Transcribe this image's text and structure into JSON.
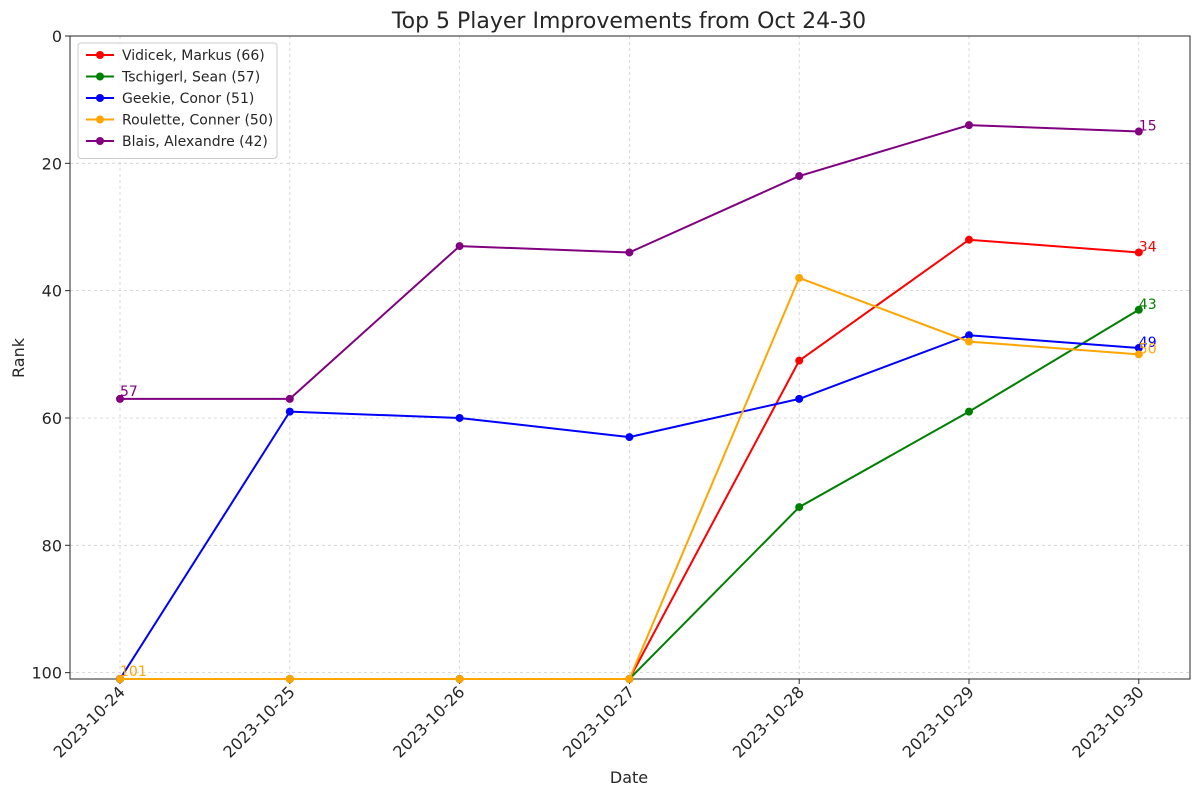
{
  "chart_data": {
    "type": "line",
    "title": "Top 5 Player Improvements from Oct 24-30",
    "xlabel": "Date",
    "ylabel": "Rank",
    "ylim": [
      0,
      101
    ],
    "y_inverted": true,
    "yticks": [
      "0",
      "20",
      "40",
      "60",
      "80",
      "100"
    ],
    "categories": [
      "2023-10-24",
      "2023-10-25",
      "2023-10-26",
      "2023-10-27",
      "2023-10-28",
      "2023-10-29",
      "2023-10-30"
    ],
    "grid": true,
    "legend_position": "top-left",
    "series": [
      {
        "name": "Vidicek, Markus (66)",
        "color": "#ff0000",
        "values": [
          101,
          101,
          101,
          101,
          51,
          32,
          34
        ],
        "end_label": "34"
      },
      {
        "name": "Tschigerl, Sean (57)",
        "color": "#008000",
        "values": [
          101,
          101,
          101,
          101,
          74,
          59,
          43
        ],
        "end_label": "43"
      },
      {
        "name": "Geekie, Conor (51)",
        "color": "#0000ff",
        "values": [
          101,
          59,
          60,
          63,
          57,
          47,
          49
        ],
        "end_label": "49"
      },
      {
        "name": "Roulette, Conner (50)",
        "color": "#ffa500",
        "values": [
          101,
          101,
          101,
          101,
          38,
          48,
          50
        ],
        "end_label": "50",
        "start_label": "101"
      },
      {
        "name": "Blais, Alexandre (42)",
        "color": "#800080",
        "values": [
          57,
          57,
          33,
          34,
          22,
          14,
          15
        ],
        "end_label": "15",
        "start_label": "57"
      }
    ]
  }
}
